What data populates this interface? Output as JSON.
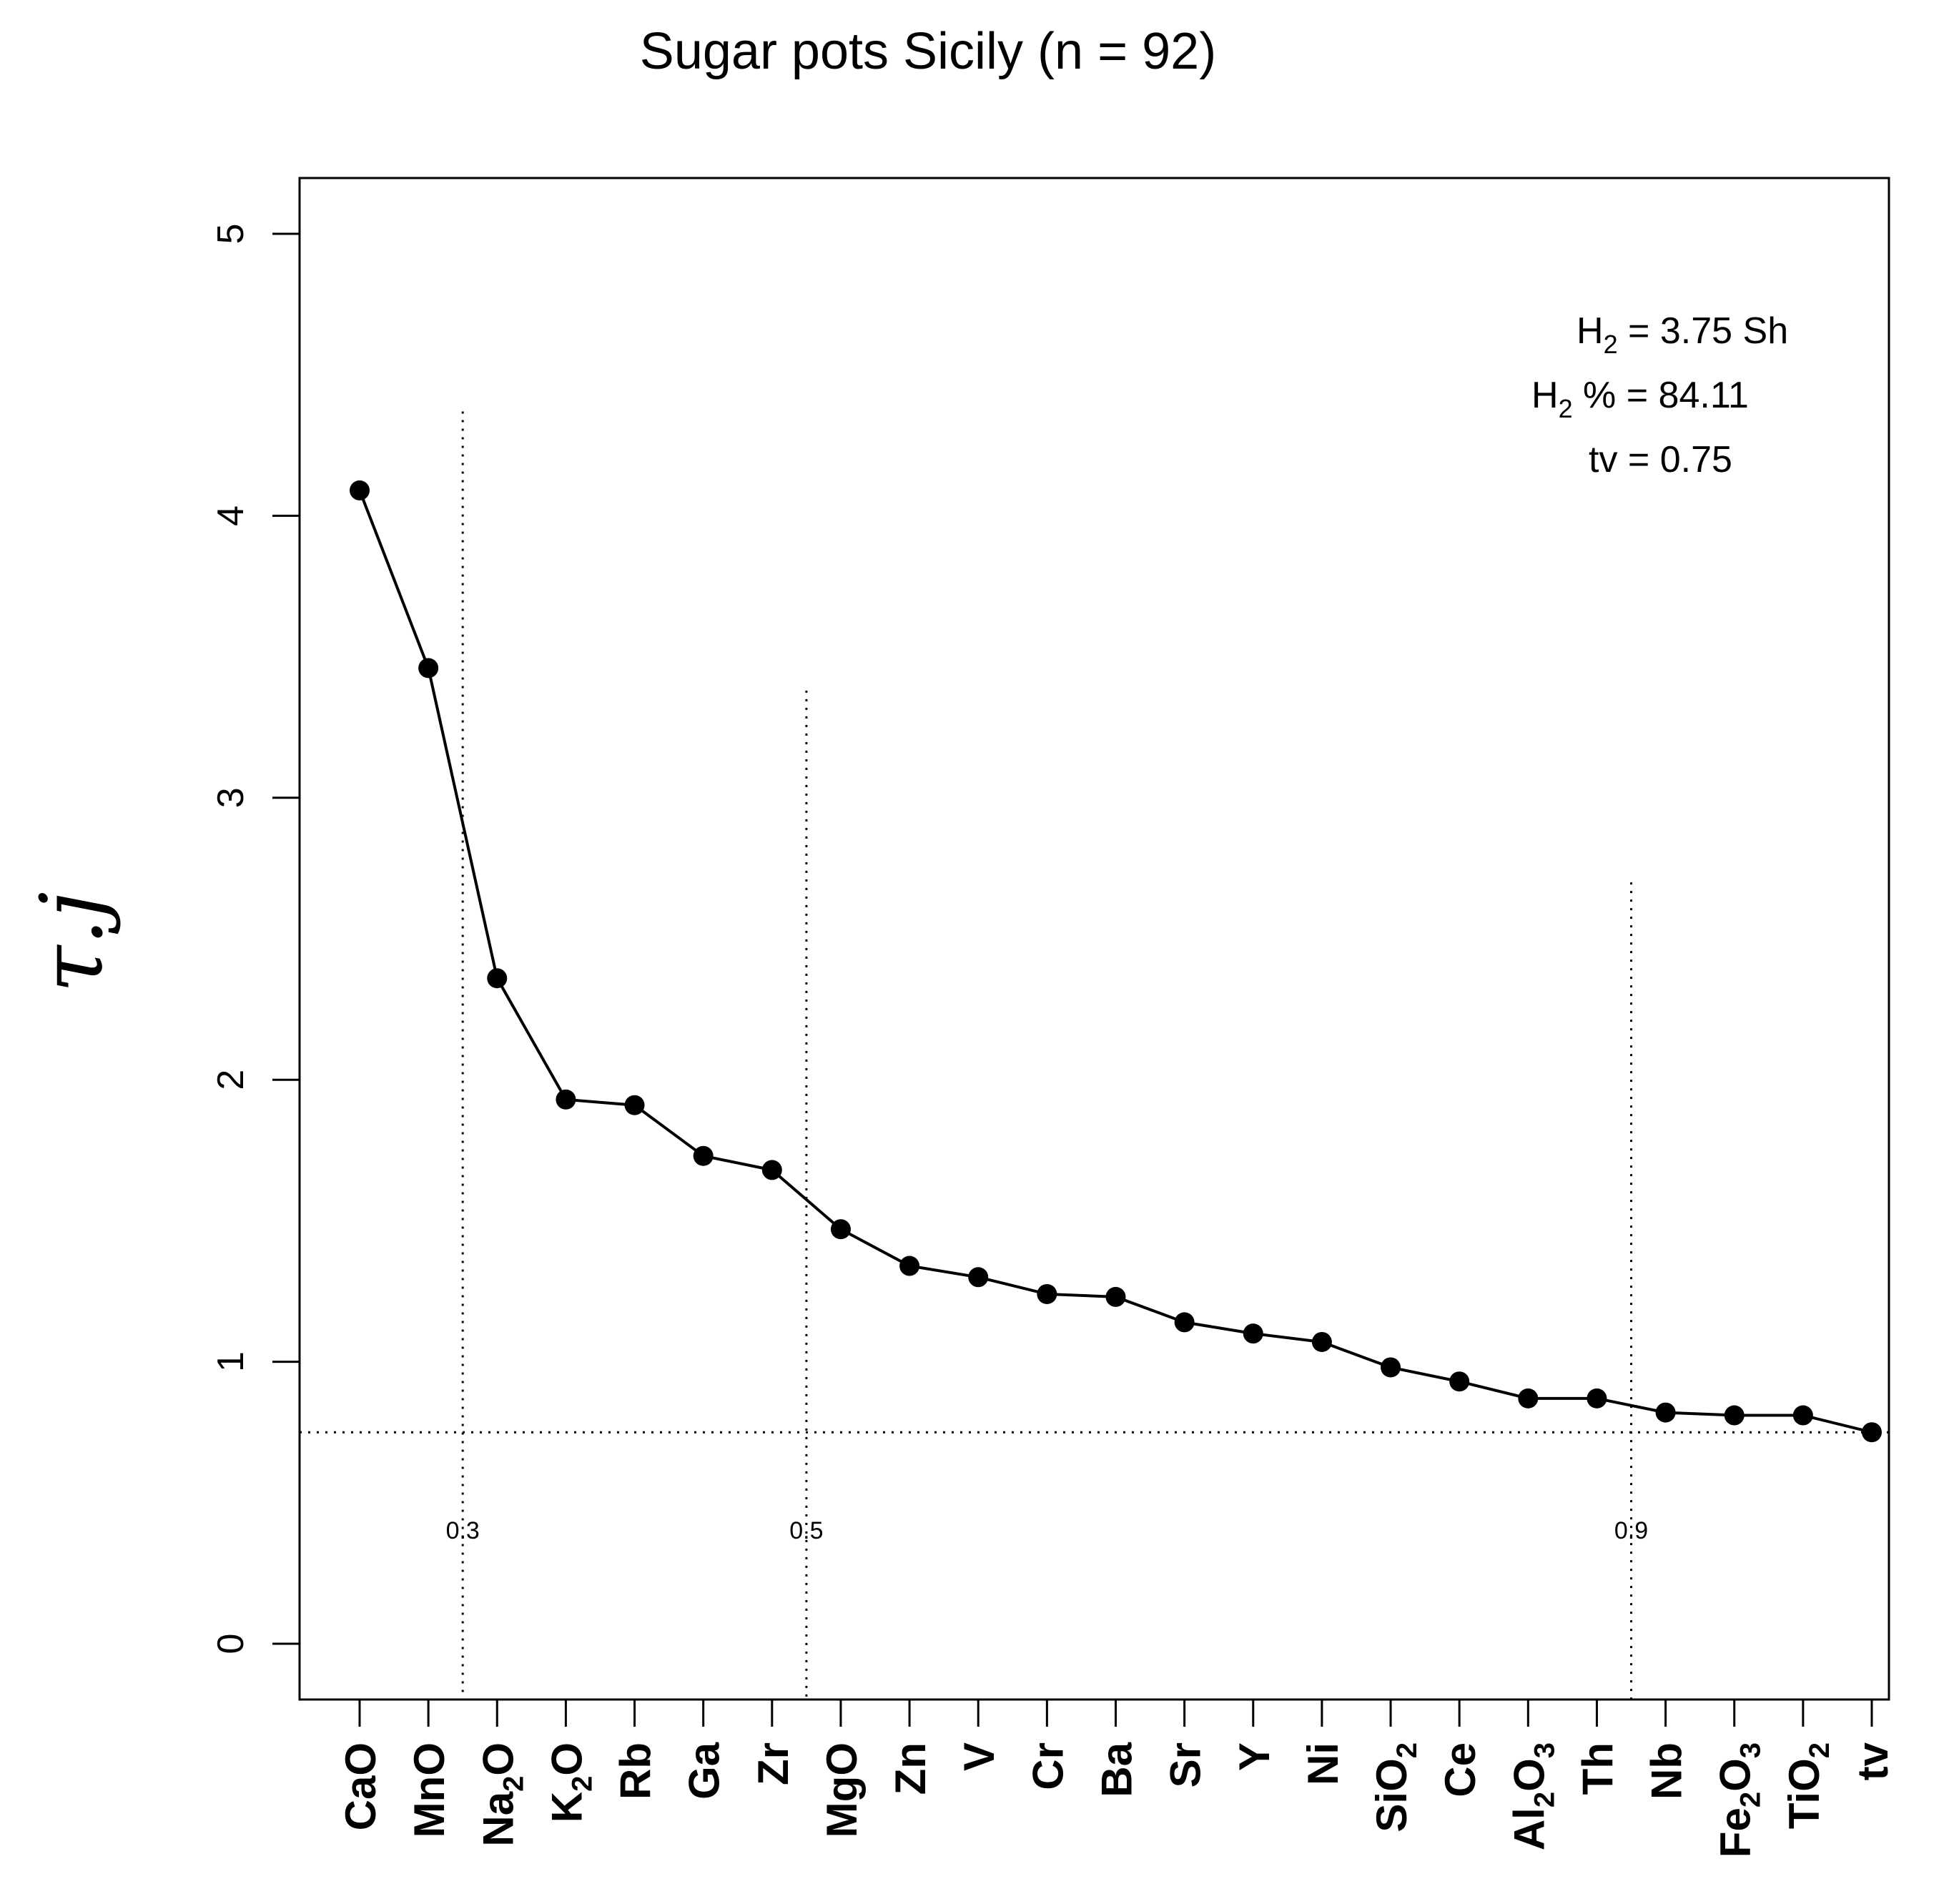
{
  "chart_data": {
    "type": "line",
    "title": "Sugar pots Sicily (n = 92)",
    "xlabel": "",
    "ylabel": "τ.j",
    "ylim": [
      0,
      5
    ],
    "yticks": [
      0,
      1,
      2,
      3,
      4,
      5
    ],
    "categories": [
      {
        "base": "CaO",
        "sub": ""
      },
      {
        "base": "MnO",
        "sub": ""
      },
      {
        "base": "Na",
        "sub": "2",
        "tail": "O"
      },
      {
        "base": "K",
        "sub": "2",
        "tail": "O"
      },
      {
        "base": "Rb",
        "sub": ""
      },
      {
        "base": "Ga",
        "sub": ""
      },
      {
        "base": "Zr",
        "sub": ""
      },
      {
        "base": "MgO",
        "sub": ""
      },
      {
        "base": "Zn",
        "sub": ""
      },
      {
        "base": "V",
        "sub": ""
      },
      {
        "base": "Cr",
        "sub": ""
      },
      {
        "base": "Ba",
        "sub": ""
      },
      {
        "base": "Sr",
        "sub": ""
      },
      {
        "base": "Y",
        "sub": ""
      },
      {
        "base": "Ni",
        "sub": ""
      },
      {
        "base": "SiO",
        "sub": "2"
      },
      {
        "base": "Ce",
        "sub": ""
      },
      {
        "base": "Al",
        "sub": "2",
        "tail": "O",
        "sub2": "3"
      },
      {
        "base": "Th",
        "sub": ""
      },
      {
        "base": "Nb",
        "sub": ""
      },
      {
        "base": "Fe",
        "sub": "2",
        "tail": "O",
        "sub2": "3"
      },
      {
        "base": "TiO",
        "sub": "2"
      },
      {
        "base": "tv",
        "sub": ""
      }
    ],
    "series": [
      {
        "name": "tau.j",
        "values": [
          4.09,
          3.46,
          2.36,
          1.93,
          1.91,
          1.73,
          1.68,
          1.47,
          1.34,
          1.3,
          1.24,
          1.23,
          1.14,
          1.1,
          1.07,
          0.98,
          0.93,
          0.87,
          0.87,
          0.82,
          0.81,
          0.81,
          0.75
        ]
      }
    ],
    "threshold_line": {
      "value": 0.75
    },
    "cumulative_markers": [
      {
        "label": "0.3",
        "after_index": 1,
        "ymax": 4.37
      },
      {
        "label": "0.5",
        "after_index": 6,
        "ymax": 3.38
      },
      {
        "label": "0.9",
        "after_index": 18,
        "ymax": 2.7
      }
    ],
    "annotations": {
      "h2_prefix": "H",
      "h2_sub": "2",
      "h2_value": " = 3.75 Sh",
      "h2pct_prefix": "H",
      "h2pct_sub": "2",
      "h2pct_value": " % = 84.11",
      "tv_text": "tv = 0.75"
    }
  }
}
